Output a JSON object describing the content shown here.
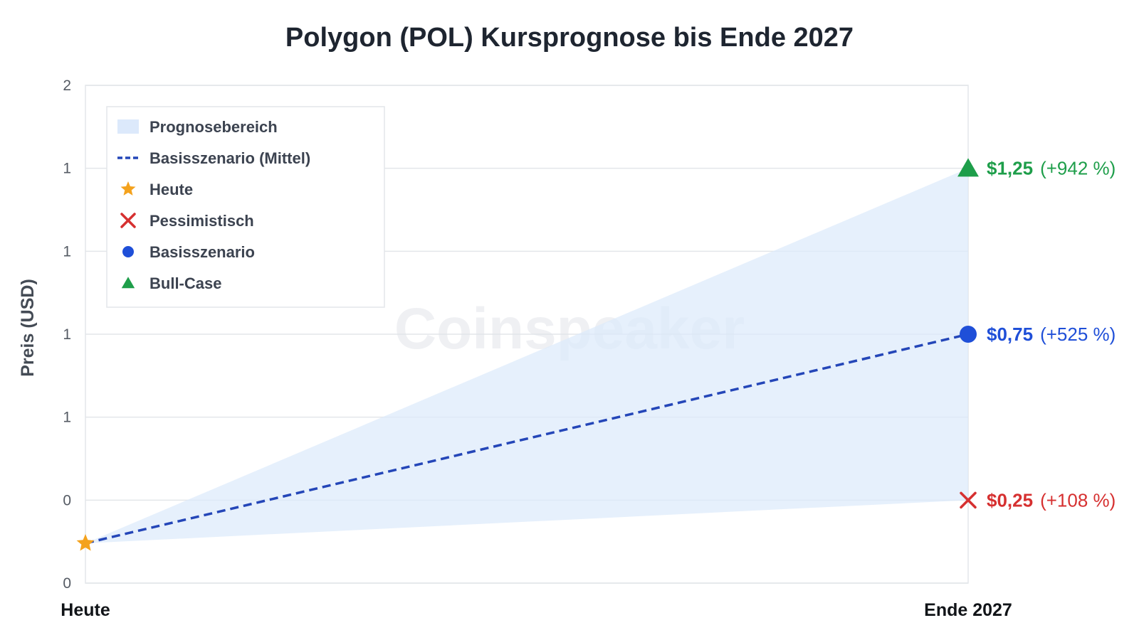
{
  "chart_data": {
    "type": "line",
    "title": "Polygon (POL) Kursprognose bis Ende 2027",
    "ylabel": "Preis (USD)",
    "xlabel": "",
    "categories": [
      "Heute",
      "Ende 2027"
    ],
    "ylim": [
      0,
      1.5
    ],
    "y_ticks": [
      0,
      0.25,
      0.5,
      0.75,
      1.0,
      1.25,
      1.5
    ],
    "y_tick_labels": [
      "0",
      "0",
      "1",
      "1",
      "1",
      "1",
      "2"
    ],
    "today_value": 0.12,
    "range": {
      "low": [
        0.12,
        0.25
      ],
      "high": [
        0.12,
        1.25
      ]
    },
    "series": [
      {
        "name": "Basisszenario (Mittel)",
        "values": [
          0.12,
          0.75
        ],
        "color": "#2446b8",
        "style": "dashed"
      }
    ],
    "scenarios": [
      {
        "name": "Pessimistisch",
        "value": 0.25,
        "price_label": "$0,25",
        "pct_label": "(+108 %)",
        "color": "#d63030",
        "marker": "x"
      },
      {
        "name": "Basisszenario",
        "value": 0.75,
        "price_label": "$0,75",
        "pct_label": "(+525 %)",
        "color": "#1f4fd8",
        "marker": "circle"
      },
      {
        "name": "Bull-Case",
        "value": 1.25,
        "price_label": "$1,25",
        "pct_label": "(+942 %)",
        "color": "#1e9e4a",
        "marker": "triangle"
      }
    ],
    "legend": {
      "position": "top-left",
      "items": [
        {
          "label": "Prognosebereich",
          "symbol": "area",
          "color": "#dce9fb"
        },
        {
          "label": "Basisszenario (Mittel)",
          "symbol": "dashed-line",
          "color": "#2446b8"
        },
        {
          "label": "Heute",
          "symbol": "star",
          "color": "#f4a21d"
        },
        {
          "label": "Pessimistisch",
          "symbol": "x",
          "color": "#d63030"
        },
        {
          "label": "Basisszenario",
          "symbol": "circle",
          "color": "#1f4fd8"
        },
        {
          "label": "Bull-Case",
          "symbol": "triangle",
          "color": "#1e9e4a"
        }
      ]
    },
    "grid": true,
    "watermark": "Coinspeaker"
  }
}
